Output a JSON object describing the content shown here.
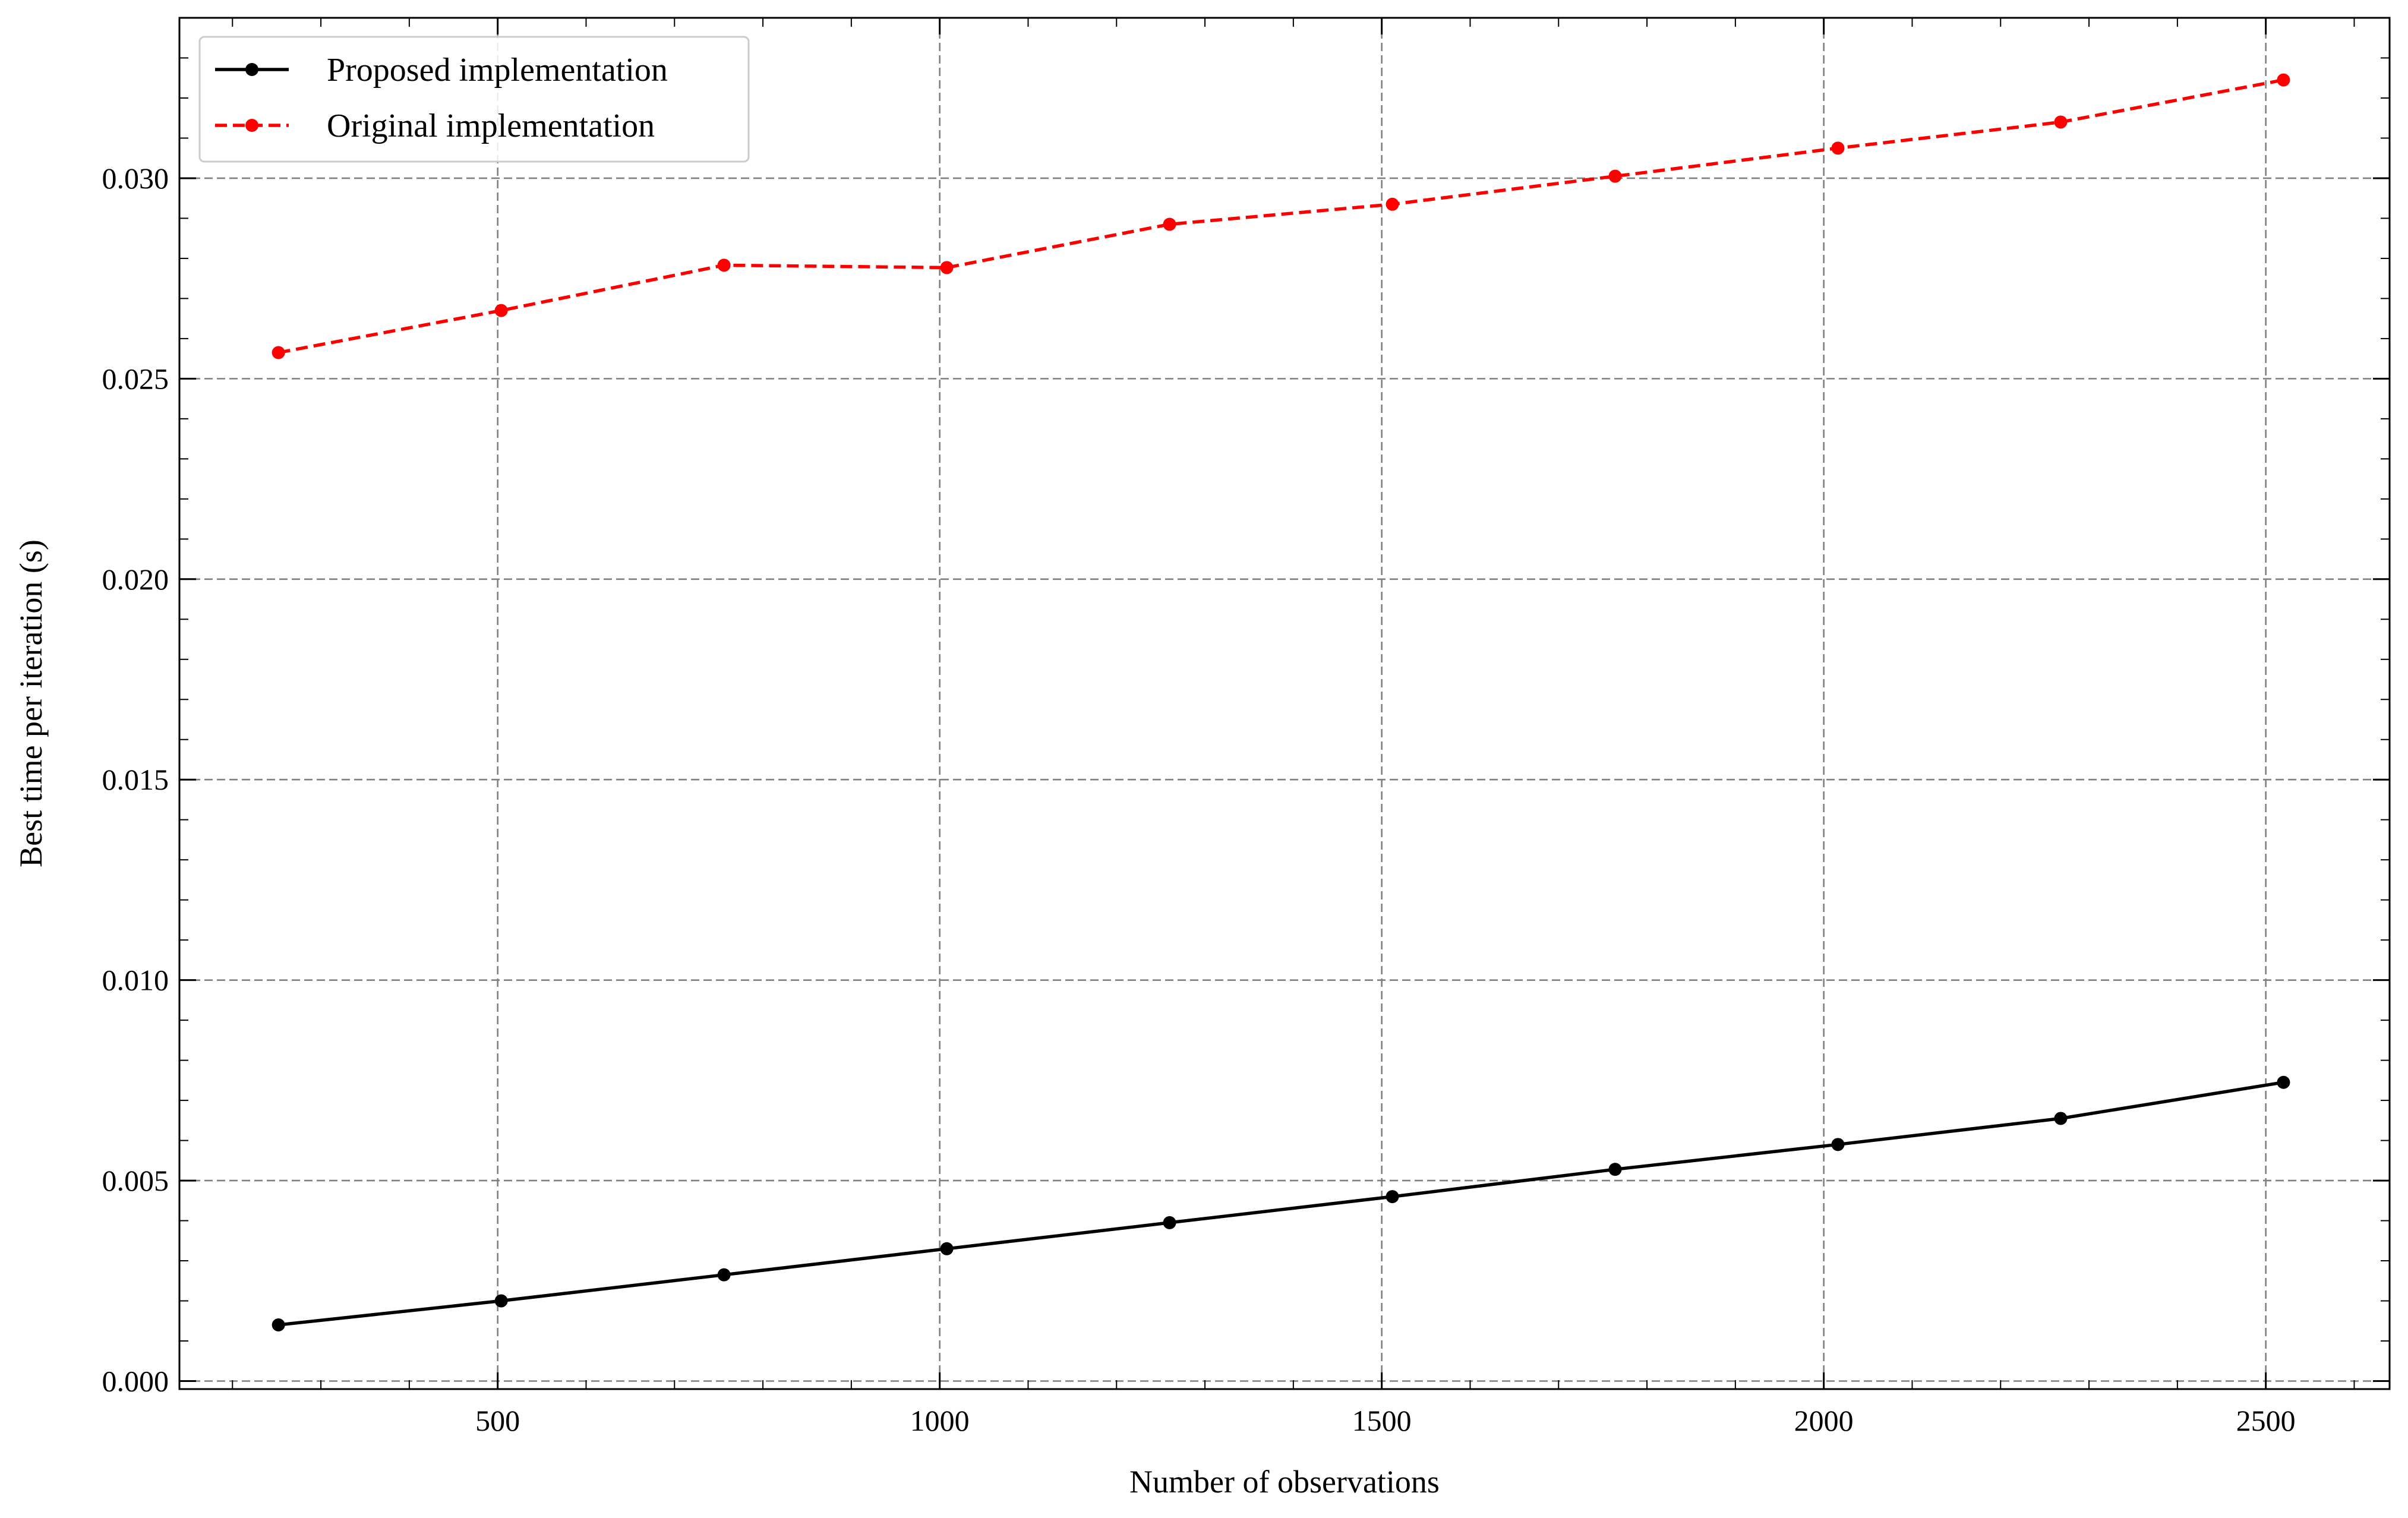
{
  "chart_data": {
    "type": "line",
    "xlabel": "Number of observations",
    "ylabel": "Best time per iteration (s)",
    "xlim": [
      140,
      2640
    ],
    "ylim": [
      -0.0002,
      0.034
    ],
    "xticks": [
      500,
      1000,
      1500,
      2000,
      2500
    ],
    "yticks": [
      0.0,
      0.005,
      0.01,
      0.015,
      0.02,
      0.025,
      0.03
    ],
    "xtick_labels": [
      "500",
      "1000",
      "1500",
      "2000",
      "2500"
    ],
    "ytick_labels": [
      "0.000",
      "0.005",
      "0.010",
      "0.015",
      "0.020",
      "0.025",
      "0.030"
    ],
    "grid": true,
    "legend_position": "top-left",
    "x": [
      252,
      504,
      756,
      1008,
      1260,
      1512,
      1764,
      2016,
      2268,
      2520
    ],
    "series": [
      {
        "name": "Proposed implementation",
        "color": "#000000",
        "linestyle": "solid",
        "values": [
          0.0014,
          0.002,
          0.00265,
          0.0033,
          0.00395,
          0.0046,
          0.00528,
          0.0059,
          0.00655,
          0.00745
        ]
      },
      {
        "name": "Original implementation",
        "color": "#ff0000",
        "linestyle": "dashed",
        "values": [
          0.02565,
          0.0267,
          0.02783,
          0.02777,
          0.02885,
          0.02935,
          0.03005,
          0.03075,
          0.0314,
          0.03245
        ]
      }
    ]
  }
}
